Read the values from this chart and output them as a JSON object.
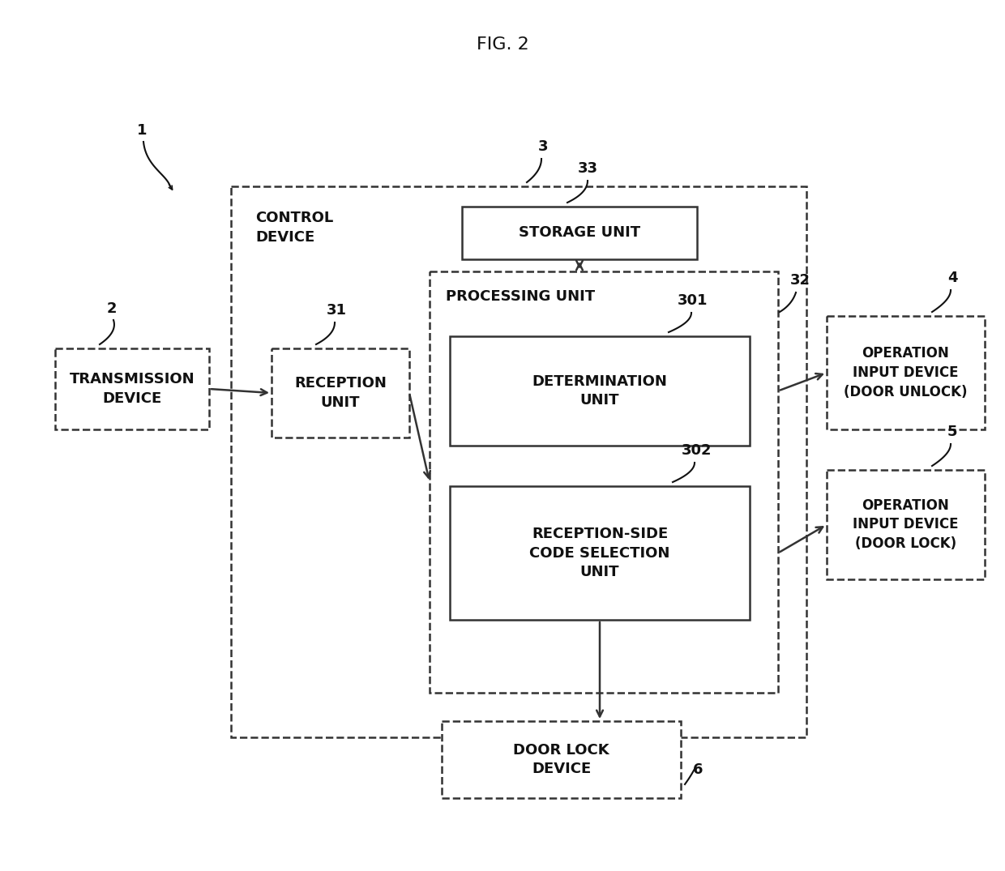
{
  "title": "FIG. 2",
  "bg_color": "#ffffff",
  "text_color": "#111111",
  "box_edge_color": "#333333",
  "label1": "1",
  "label2": "2",
  "label3": "3",
  "label4": "4",
  "label5": "5",
  "label6": "6",
  "label31": "31",
  "label32": "32",
  "label33": "33",
  "label301": "301",
  "label302": "302",
  "transmission_device": "TRANSMISSION\nDEVICE",
  "reception_unit": "RECEPTION\nUNIT",
  "control_device": "CONTROL\nDEVICE",
  "storage_unit": "STORAGE UNIT",
  "processing_unit": "PROCESSING UNIT",
  "determination_unit": "DETERMINATION\nUNIT",
  "reception_side": "RECEPTION-SIDE\nCODE SELECTION\nUNIT",
  "operation_input_unlock": "OPERATION\nINPUT DEVICE\n(DOOR UNLOCK)",
  "operation_input_lock": "OPERATION\nINPUT DEVICE\n(DOOR LOCK)",
  "door_lock_device": "DOOR LOCK\nDEVICE",
  "font_size": 13,
  "label_font_size": 13
}
